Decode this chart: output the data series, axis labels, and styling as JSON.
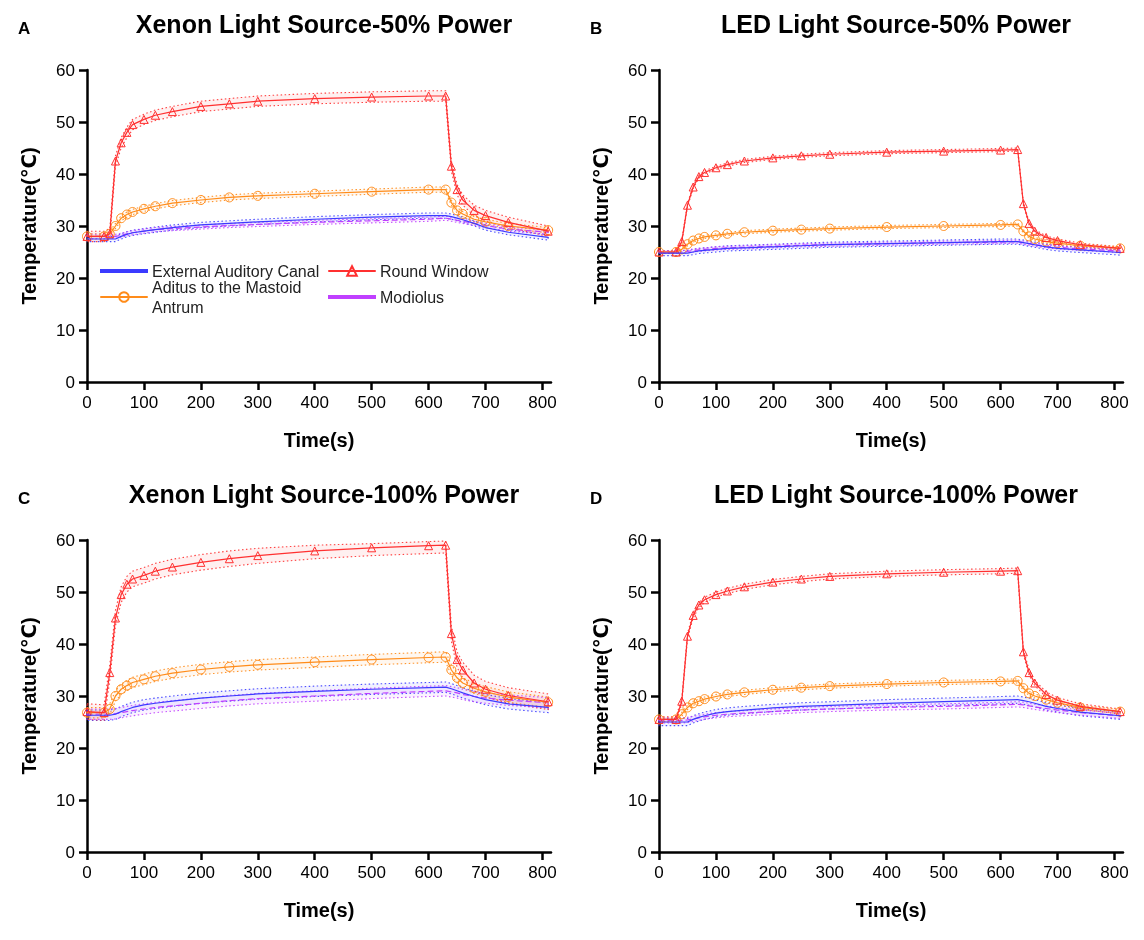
{
  "chart_data": [
    {
      "type": "line",
      "title": "Xenon Light Source-50% Power",
      "annotations": [
        "A"
      ],
      "xlabel": "Time(s)",
      "ylabel": "Temperature(℃)",
      "xlim": [
        0,
        815
      ],
      "xticks": [
        0,
        100,
        200,
        300,
        400,
        500,
        600,
        700,
        800
      ],
      "ylim": [
        0,
        60
      ],
      "yticks": [
        0,
        10,
        20,
        30,
        40,
        50,
        60
      ],
      "grid": false,
      "legend": "bottom left",
      "x": [
        0,
        30,
        40,
        50,
        60,
        70,
        80,
        100,
        120,
        150,
        200,
        250,
        300,
        400,
        500,
        600,
        630,
        640,
        650,
        660,
        680,
        700,
        740,
        810
      ],
      "series": [
        {
          "name": "External Auditory Canal",
          "color": "#3b3bff",
          "marker": "none",
          "line_style": "solid",
          "values": [
            27.5,
            27.5,
            27.5,
            27.5,
            28,
            28.4,
            28.7,
            29,
            29.3,
            29.7,
            30.2,
            30.5,
            30.8,
            31.3,
            31.7,
            32,
            32,
            31.8,
            31.5,
            31.2,
            30.5,
            29.7,
            28.8,
            27.8
          ],
          "lower": [
            27,
            27,
            27,
            27,
            27.5,
            27.9,
            28.2,
            28.5,
            28.8,
            29.2,
            29.7,
            30,
            30.3,
            30.8,
            31.2,
            31.5,
            31.5,
            31.3,
            31,
            30.7,
            30,
            29.2,
            28.3,
            27.3
          ],
          "upper": [
            28,
            28,
            28,
            28,
            28.5,
            28.9,
            29.2,
            29.5,
            29.8,
            30.2,
            30.7,
            31,
            31.3,
            31.8,
            32.2,
            32.5,
            32.5,
            32.3,
            32,
            31.7,
            31,
            30.2,
            29.3,
            28.3
          ]
        },
        {
          "name": "Round Window",
          "color": "#ff3030",
          "marker": "triangle",
          "line_style": "solid",
          "values": [
            28,
            28,
            28.5,
            42.5,
            46,
            48,
            49.5,
            50.5,
            51.3,
            52,
            53,
            53.5,
            54,
            54.5,
            54.8,
            55,
            55,
            41.5,
            37,
            35,
            33,
            32,
            30.7,
            29
          ],
          "lower": [
            27,
            27,
            27.5,
            41.5,
            45,
            47,
            48.5,
            49.5,
            50.3,
            51,
            52,
            52.5,
            53,
            53.5,
            53.8,
            54,
            54,
            40.5,
            36,
            34,
            32,
            31,
            29.7,
            28
          ],
          "upper": [
            29,
            29,
            29.5,
            43.5,
            47,
            49,
            50.5,
            51.5,
            52.3,
            53,
            54,
            54.5,
            55,
            55.5,
            55.8,
            56,
            56,
            42.5,
            38,
            36,
            34,
            33,
            31.7,
            30
          ]
        },
        {
          "name": "Aditus to the Mastoid Antrum",
          "color": "#ff8c1a",
          "marker": "circle",
          "line_style": "solid",
          "values": [
            28,
            28,
            28.5,
            30,
            31.5,
            32.2,
            32.7,
            33.3,
            33.8,
            34.4,
            35,
            35.5,
            35.8,
            36.2,
            36.6,
            37,
            37,
            34.5,
            33,
            32.3,
            31.3,
            30.8,
            30,
            29.2
          ],
          "lower": [
            27.5,
            27.5,
            28,
            29.5,
            31,
            31.7,
            32.2,
            32.8,
            33.3,
            33.9,
            34.5,
            35,
            35.3,
            35.7,
            36.1,
            36.5,
            36.5,
            34,
            32.5,
            31.8,
            30.8,
            30.3,
            29.5,
            28.7
          ],
          "upper": [
            28.5,
            28.5,
            29,
            30.5,
            32,
            32.7,
            33.2,
            33.8,
            34.3,
            34.9,
            35.5,
            36,
            36.3,
            36.7,
            37.1,
            37.5,
            37.5,
            35,
            33.5,
            32.8,
            31.8,
            31.3,
            30.5,
            29.7
          ]
        },
        {
          "name": "Modiolus",
          "color": "#c040ff",
          "marker": "none",
          "line_style": "dashed",
          "values": [
            28,
            28,
            28,
            28,
            28.2,
            28.5,
            28.7,
            29,
            29.3,
            29.5,
            29.8,
            30.1,
            30.3,
            30.7,
            31,
            31.3,
            31.5,
            31.3,
            31.1,
            30.9,
            30.5,
            30.1,
            29.4,
            28.8
          ],
          "lower": [
            27.6,
            27.6,
            27.6,
            27.6,
            27.8,
            28.1,
            28.3,
            28.6,
            28.9,
            29.1,
            29.4,
            29.7,
            29.9,
            30.3,
            30.6,
            30.9,
            31.1,
            30.9,
            30.7,
            30.5,
            30.1,
            29.7,
            29,
            28.4
          ],
          "upper": [
            28.4,
            28.4,
            28.4,
            28.4,
            28.6,
            28.9,
            29.1,
            29.4,
            29.7,
            29.9,
            30.2,
            30.5,
            30.7,
            31.1,
            31.4,
            31.7,
            31.9,
            31.7,
            31.5,
            31.3,
            30.9,
            30.5,
            29.8,
            29.2
          ]
        }
      ]
    },
    {
      "type": "line",
      "title": "LED Light Source-50% Power",
      "annotations": [
        "B"
      ],
      "xlabel": "Time(s)",
      "ylabel": "Temperature(℃)",
      "xlim": [
        0,
        815
      ],
      "xticks": [
        0,
        100,
        200,
        300,
        400,
        500,
        600,
        700,
        800
      ],
      "ylim": [
        0,
        60
      ],
      "yticks": [
        0,
        10,
        20,
        30,
        40,
        50,
        60
      ],
      "grid": false,
      "x": [
        0,
        30,
        40,
        50,
        60,
        70,
        80,
        100,
        120,
        150,
        200,
        250,
        300,
        400,
        500,
        600,
        630,
        640,
        650,
        660,
        680,
        700,
        740,
        810
      ],
      "series": [
        {
          "color": "#3b3bff",
          "marker": "none",
          "line_style": "solid",
          "values": [
            24.8,
            24.8,
            24.8,
            24.8,
            25,
            25.2,
            25.3,
            25.5,
            25.7,
            25.8,
            26,
            26.2,
            26.4,
            26.6,
            26.8,
            27,
            27,
            26.8,
            26.6,
            26.4,
            26,
            25.7,
            25.4,
            24.9
          ],
          "lower": [
            24.3,
            24.3,
            24.3,
            24.3,
            24.5,
            24.7,
            24.8,
            25,
            25.2,
            25.3,
            25.5,
            25.7,
            25.9,
            26.1,
            26.3,
            26.5,
            26.5,
            26.3,
            26.1,
            25.9,
            25.5,
            25.2,
            24.9,
            24.4
          ],
          "upper": [
            25.3,
            25.3,
            25.3,
            25.3,
            25.5,
            25.7,
            25.8,
            26,
            26.2,
            26.3,
            26.5,
            26.7,
            26.9,
            27.1,
            27.3,
            27.5,
            27.5,
            27.3,
            27.1,
            26.9,
            26.5,
            26.2,
            25.9,
            25.4
          ]
        },
        {
          "color": "#ff3030",
          "marker": "triangle",
          "line_style": "solid",
          "values": [
            25,
            25,
            27,
            34,
            37.5,
            39.5,
            40.3,
            41.2,
            41.8,
            42.5,
            43.1,
            43.5,
            43.8,
            44.2,
            44.4,
            44.6,
            44.7,
            34.3,
            30.5,
            29,
            27.8,
            27.2,
            26.4,
            25.7
          ],
          "lower": [
            24.7,
            24.7,
            26.7,
            33.7,
            37.2,
            39.2,
            40,
            40.9,
            41.5,
            42.2,
            42.8,
            43.2,
            43.5,
            43.9,
            44.1,
            44.3,
            44.4,
            34,
            30.2,
            28.7,
            27.5,
            26.9,
            26.1,
            25.4
          ],
          "upper": [
            25.3,
            25.3,
            27.3,
            34.3,
            37.8,
            39.8,
            40.6,
            41.5,
            42.1,
            42.8,
            43.4,
            43.8,
            44.1,
            44.5,
            44.7,
            44.9,
            45,
            34.6,
            30.8,
            29.3,
            28.1,
            27.5,
            26.7,
            26
          ]
        },
        {
          "color": "#ff8c1a",
          "marker": "circle",
          "line_style": "solid",
          "values": [
            25,
            25,
            25.5,
            26.5,
            27.2,
            27.6,
            27.9,
            28.2,
            28.5,
            28.8,
            29.1,
            29.3,
            29.5,
            29.8,
            30,
            30.2,
            30.3,
            29,
            28,
            27.5,
            27,
            26.7,
            26.2,
            25.7
          ],
          "lower": [
            24.7,
            24.7,
            25.2,
            26.2,
            26.9,
            27.3,
            27.6,
            27.9,
            28.2,
            28.5,
            28.8,
            29,
            29.2,
            29.5,
            29.7,
            29.9,
            30,
            28.7,
            27.7,
            27.2,
            26.7,
            26.4,
            25.9,
            25.4
          ],
          "upper": [
            25.3,
            25.3,
            25.8,
            26.8,
            27.5,
            27.9,
            28.2,
            28.5,
            28.8,
            29.1,
            29.4,
            29.6,
            29.8,
            30.1,
            30.3,
            30.5,
            30.6,
            29.3,
            28.3,
            27.8,
            27.3,
            27,
            26.5,
            26
          ]
        },
        {
          "color": "#c040ff",
          "marker": "none",
          "line_style": "dashed",
          "values": [
            25,
            25,
            25,
            25.1,
            25.3,
            25.4,
            25.5,
            25.7,
            25.8,
            25.9,
            26.1,
            26.3,
            26.4,
            26.6,
            26.8,
            26.9,
            27,
            26.8,
            26.6,
            26.4,
            26.1,
            25.9,
            25.6,
            25.2
          ],
          "lower": [
            24.7,
            24.7,
            24.7,
            24.8,
            25,
            25.1,
            25.2,
            25.4,
            25.5,
            25.6,
            25.8,
            26,
            26.1,
            26.3,
            26.5,
            26.6,
            26.7,
            26.5,
            26.3,
            26.1,
            25.8,
            25.6,
            25.3,
            24.9
          ],
          "upper": [
            25.3,
            25.3,
            25.3,
            25.4,
            25.6,
            25.7,
            25.8,
            26,
            26.1,
            26.2,
            26.4,
            26.6,
            26.7,
            26.9,
            27.1,
            27.2,
            27.3,
            27.1,
            26.9,
            26.7,
            26.4,
            26.2,
            25.9,
            25.5
          ]
        }
      ]
    },
    {
      "type": "line",
      "title": "Xenon Light Source-100% Power",
      "annotations": [
        "C"
      ],
      "xlabel": "Time(s)",
      "ylabel": "Temperature(℃)",
      "xlim": [
        0,
        815
      ],
      "xticks": [
        0,
        100,
        200,
        300,
        400,
        500,
        600,
        700,
        800
      ],
      "ylim": [
        0,
        60
      ],
      "yticks": [
        0,
        10,
        20,
        30,
        40,
        50,
        60
      ],
      "grid": false,
      "x": [
        0,
        30,
        40,
        50,
        60,
        70,
        80,
        100,
        120,
        150,
        200,
        250,
        300,
        400,
        500,
        600,
        630,
        640,
        650,
        660,
        680,
        700,
        740,
        810
      ],
      "series": [
        {
          "color": "#3b3bff",
          "marker": "none",
          "line_style": "solid",
          "values": [
            26.3,
            26.3,
            26.3,
            26.5,
            27,
            27.4,
            27.8,
            28.3,
            28.6,
            29,
            29.6,
            30,
            30.4,
            30.9,
            31.3,
            31.6,
            31.7,
            31.4,
            31,
            30.6,
            29.9,
            29.3,
            28.5,
            27.8
          ],
          "lower": [
            25.3,
            25.3,
            25.3,
            25.5,
            26,
            26.4,
            26.8,
            27.3,
            27.6,
            28,
            28.6,
            29,
            29.4,
            29.9,
            30.3,
            30.6,
            30.7,
            30.4,
            30,
            29.6,
            28.9,
            28.3,
            27.5,
            26.8
          ],
          "upper": [
            27.3,
            27.3,
            27.3,
            27.5,
            28,
            28.4,
            28.8,
            29.3,
            29.6,
            30,
            30.6,
            31,
            31.4,
            31.9,
            32.3,
            32.6,
            32.7,
            32.4,
            32,
            31.6,
            30.9,
            30.3,
            29.5,
            28.8
          ]
        },
        {
          "color": "#ff3030",
          "marker": "triangle",
          "line_style": "solid",
          "values": [
            27,
            26.8,
            34.5,
            45,
            49.5,
            51.5,
            52.5,
            53.2,
            54,
            54.8,
            55.7,
            56.4,
            57,
            57.9,
            58.5,
            58.9,
            59,
            42,
            37,
            35,
            32.5,
            31.3,
            30.1,
            28.9
          ],
          "lower": [
            25.5,
            25.3,
            33,
            43.5,
            48,
            50,
            51,
            51.7,
            52.5,
            53.3,
            54.2,
            54.9,
            55.5,
            56.4,
            57,
            57.4,
            57.5,
            40.5,
            35.5,
            33.5,
            31,
            29.8,
            28.6,
            27.4
          ],
          "upper": [
            28.5,
            28.3,
            36,
            46.5,
            51,
            53,
            54,
            54.7,
            55.5,
            56.3,
            57.2,
            57.9,
            58.4,
            59,
            59.3,
            59.7,
            59.8,
            43.5,
            38.5,
            36.5,
            34,
            32.8,
            31.6,
            30.4
          ]
        },
        {
          "color": "#ff8c1a",
          "marker": "circle",
          "line_style": "solid",
          "values": [
            26.8,
            26.8,
            27.5,
            30,
            31.3,
            32,
            32.6,
            33.2,
            33.8,
            34.4,
            35.1,
            35.6,
            36,
            36.5,
            37,
            37.4,
            37.5,
            35,
            33.5,
            32.5,
            31.5,
            30.8,
            29.8,
            28.8
          ],
          "lower": [
            25.8,
            25.8,
            26.5,
            29,
            30.3,
            31,
            31.6,
            32.2,
            32.8,
            33.4,
            34.1,
            34.6,
            35,
            35.5,
            36,
            36.4,
            36.5,
            34,
            32.5,
            31.5,
            30.5,
            29.8,
            28.8,
            27.8
          ],
          "upper": [
            27.8,
            27.8,
            28.5,
            31,
            32.3,
            33,
            33.6,
            34.2,
            34.8,
            35.4,
            36.1,
            36.6,
            37,
            37.5,
            38,
            38.4,
            38.5,
            36,
            34.5,
            33.5,
            32.5,
            31.8,
            30.8,
            29.8
          ]
        },
        {
          "color": "#c040ff",
          "marker": "none",
          "line_style": "dashed",
          "values": [
            26.5,
            26.5,
            26.5,
            26.6,
            26.8,
            27,
            27.2,
            27.5,
            27.8,
            28.1,
            28.6,
            29.1,
            29.5,
            30,
            30.5,
            30.9,
            31,
            30.8,
            30.6,
            30.3,
            29.9,
            29.6,
            29.2,
            28.7
          ],
          "lower": [
            25.5,
            25.5,
            25.5,
            25.6,
            25.8,
            26,
            26.2,
            26.5,
            26.8,
            27.1,
            27.6,
            28.1,
            28.5,
            29,
            29.5,
            29.9,
            30,
            29.8,
            29.6,
            29.3,
            28.9,
            28.6,
            28.2,
            27.7
          ],
          "upper": [
            27.5,
            27.5,
            27.5,
            27.6,
            27.8,
            28,
            28.2,
            28.5,
            28.8,
            29.1,
            29.6,
            30.1,
            30.5,
            31,
            31.5,
            31.9,
            32,
            31.8,
            31.6,
            31.3,
            30.9,
            30.6,
            30.2,
            29.7
          ]
        }
      ]
    },
    {
      "type": "line",
      "title": "LED Light Source-100% Power",
      "annotations": [
        "D"
      ],
      "xlabel": "Time(s)",
      "ylabel": "Temperature(℃)",
      "xlim": [
        0,
        815
      ],
      "xticks": [
        0,
        100,
        200,
        300,
        400,
        500,
        600,
        700,
        800
      ],
      "ylim": [
        0,
        60
      ],
      "yticks": [
        0,
        10,
        20,
        30,
        40,
        50,
        60
      ],
      "grid": false,
      "x": [
        0,
        30,
        40,
        50,
        60,
        70,
        80,
        100,
        120,
        150,
        200,
        250,
        300,
        400,
        500,
        600,
        630,
        640,
        650,
        660,
        680,
        700,
        740,
        810
      ],
      "series": [
        {
          "color": "#3b3bff",
          "marker": "none",
          "line_style": "solid",
          "values": [
            25,
            25,
            25,
            25,
            25.5,
            25.9,
            26.2,
            26.7,
            27,
            27.3,
            27.7,
            28,
            28.2,
            28.6,
            28.9,
            29.2,
            29.3,
            29.1,
            28.9,
            28.6,
            28,
            27.6,
            26.9,
            26.2
          ],
          "lower": [
            24.3,
            24.3,
            24.3,
            24.3,
            24.8,
            25.2,
            25.5,
            26,
            26.3,
            26.6,
            27,
            27.3,
            27.5,
            27.9,
            28.2,
            28.5,
            28.6,
            28.4,
            28.2,
            27.9,
            27.3,
            26.9,
            26.2,
            25.5
          ],
          "upper": [
            25.7,
            25.7,
            25.7,
            25.7,
            26.2,
            26.6,
            26.9,
            27.4,
            27.7,
            28,
            28.4,
            28.7,
            28.9,
            29.3,
            29.6,
            29.9,
            30,
            29.8,
            29.6,
            29.3,
            28.7,
            28.3,
            27.6,
            26.9
          ]
        },
        {
          "color": "#ff3030",
          "marker": "triangle",
          "line_style": "solid",
          "values": [
            25.5,
            25.5,
            29,
            41.5,
            45.5,
            47.5,
            48.5,
            49.5,
            50.2,
            51,
            51.9,
            52.5,
            53,
            53.5,
            53.8,
            54,
            54.1,
            38.5,
            34.5,
            32.5,
            30.3,
            29.2,
            28,
            27
          ],
          "lower": [
            25,
            25,
            28.5,
            41,
            45,
            47,
            48,
            49,
            49.7,
            50.5,
            51.4,
            52,
            52.5,
            53,
            53.3,
            53.5,
            53.6,
            38,
            34,
            32,
            29.8,
            28.7,
            27.5,
            26.5
          ],
          "upper": [
            26,
            26,
            29.5,
            42,
            46,
            48,
            49,
            50,
            50.7,
            51.5,
            52.4,
            53,
            53.5,
            54,
            54.3,
            54.5,
            54.6,
            39,
            35,
            33,
            30.8,
            29.7,
            28.5,
            27.5
          ]
        },
        {
          "color": "#ff8c1a",
          "marker": "circle",
          "line_style": "solid",
          "values": [
            25.5,
            25.5,
            26.5,
            27.8,
            28.6,
            29,
            29.4,
            29.9,
            30.3,
            30.7,
            31.2,
            31.6,
            31.9,
            32.3,
            32.6,
            32.8,
            32.9,
            31.5,
            30.5,
            30,
            29.3,
            28.7,
            27.8,
            27
          ],
          "lower": [
            25.1,
            25.1,
            26.1,
            27.4,
            28.2,
            28.6,
            29,
            29.5,
            29.9,
            30.3,
            30.8,
            31.2,
            31.5,
            31.9,
            32.2,
            32.4,
            32.5,
            31.1,
            30.1,
            29.6,
            28.9,
            28.3,
            27.4,
            26.6
          ],
          "upper": [
            25.9,
            25.9,
            26.9,
            28.2,
            29,
            29.4,
            29.8,
            30.3,
            30.7,
            31.1,
            31.6,
            32,
            32.3,
            32.7,
            33,
            33.2,
            33.3,
            31.9,
            30.9,
            30.4,
            29.7,
            29.1,
            28.2,
            27.4
          ]
        },
        {
          "color": "#c040ff",
          "marker": "none",
          "line_style": "dashed",
          "values": [
            25.3,
            25.3,
            25.3,
            25.4,
            25.6,
            25.8,
            26,
            26.3,
            26.5,
            26.7,
            27,
            27.3,
            27.5,
            27.8,
            28,
            28.3,
            28.4,
            28.3,
            28.1,
            27.9,
            27.6,
            27.3,
            26.8,
            26.2
          ],
          "lower": [
            24.8,
            24.8,
            24.8,
            24.9,
            25.1,
            25.3,
            25.5,
            25.8,
            26,
            26.2,
            26.5,
            26.8,
            27,
            27.3,
            27.5,
            27.8,
            27.9,
            27.8,
            27.6,
            27.4,
            27.1,
            26.8,
            26.3,
            25.7
          ],
          "upper": [
            25.8,
            25.8,
            25.8,
            25.9,
            26.1,
            26.3,
            26.5,
            26.8,
            27,
            27.2,
            27.5,
            27.8,
            28,
            28.3,
            28.5,
            28.8,
            28.9,
            28.8,
            28.6,
            28.4,
            28.1,
            27.8,
            27.3,
            26.7
          ]
        }
      ]
    }
  ]
}
